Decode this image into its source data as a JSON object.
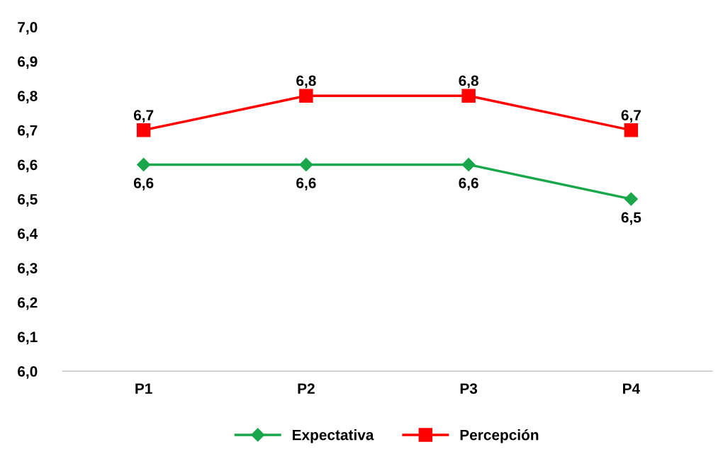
{
  "chart_data": {
    "type": "line",
    "categories": [
      "P1",
      "P2",
      "P3",
      "P4"
    ],
    "series": [
      {
        "name": "Expectativa",
        "color": "#1aa64b",
        "marker": "diamond",
        "values": [
          6.6,
          6.6,
          6.6,
          6.5
        ],
        "value_labels": [
          "6,6",
          "6,6",
          "6,6",
          "6,5"
        ]
      },
      {
        "name": "Percepción",
        "color": "#ff0000",
        "marker": "square",
        "values": [
          6.7,
          6.8,
          6.8,
          6.7
        ],
        "value_labels": [
          "6,7",
          "6,8",
          "6,8",
          "6,7"
        ]
      }
    ],
    "ylim": [
      6.0,
      7.0
    ],
    "yticks": [
      {
        "value": 6.0,
        "label": "6,0"
      },
      {
        "value": 6.1,
        "label": "6,1"
      },
      {
        "value": 6.2,
        "label": "6,2"
      },
      {
        "value": 6.3,
        "label": "6,3"
      },
      {
        "value": 6.4,
        "label": "6,4"
      },
      {
        "value": 6.5,
        "label": "6,5"
      },
      {
        "value": 6.6,
        "label": "6,6"
      },
      {
        "value": 6.7,
        "label": "6,7"
      },
      {
        "value": 6.8,
        "label": "6,8"
      },
      {
        "value": 6.9,
        "label": "6,9"
      },
      {
        "value": 7.0,
        "label": "7,0"
      }
    ],
    "grid": false,
    "legend": "bottom",
    "line_style": "solid"
  }
}
